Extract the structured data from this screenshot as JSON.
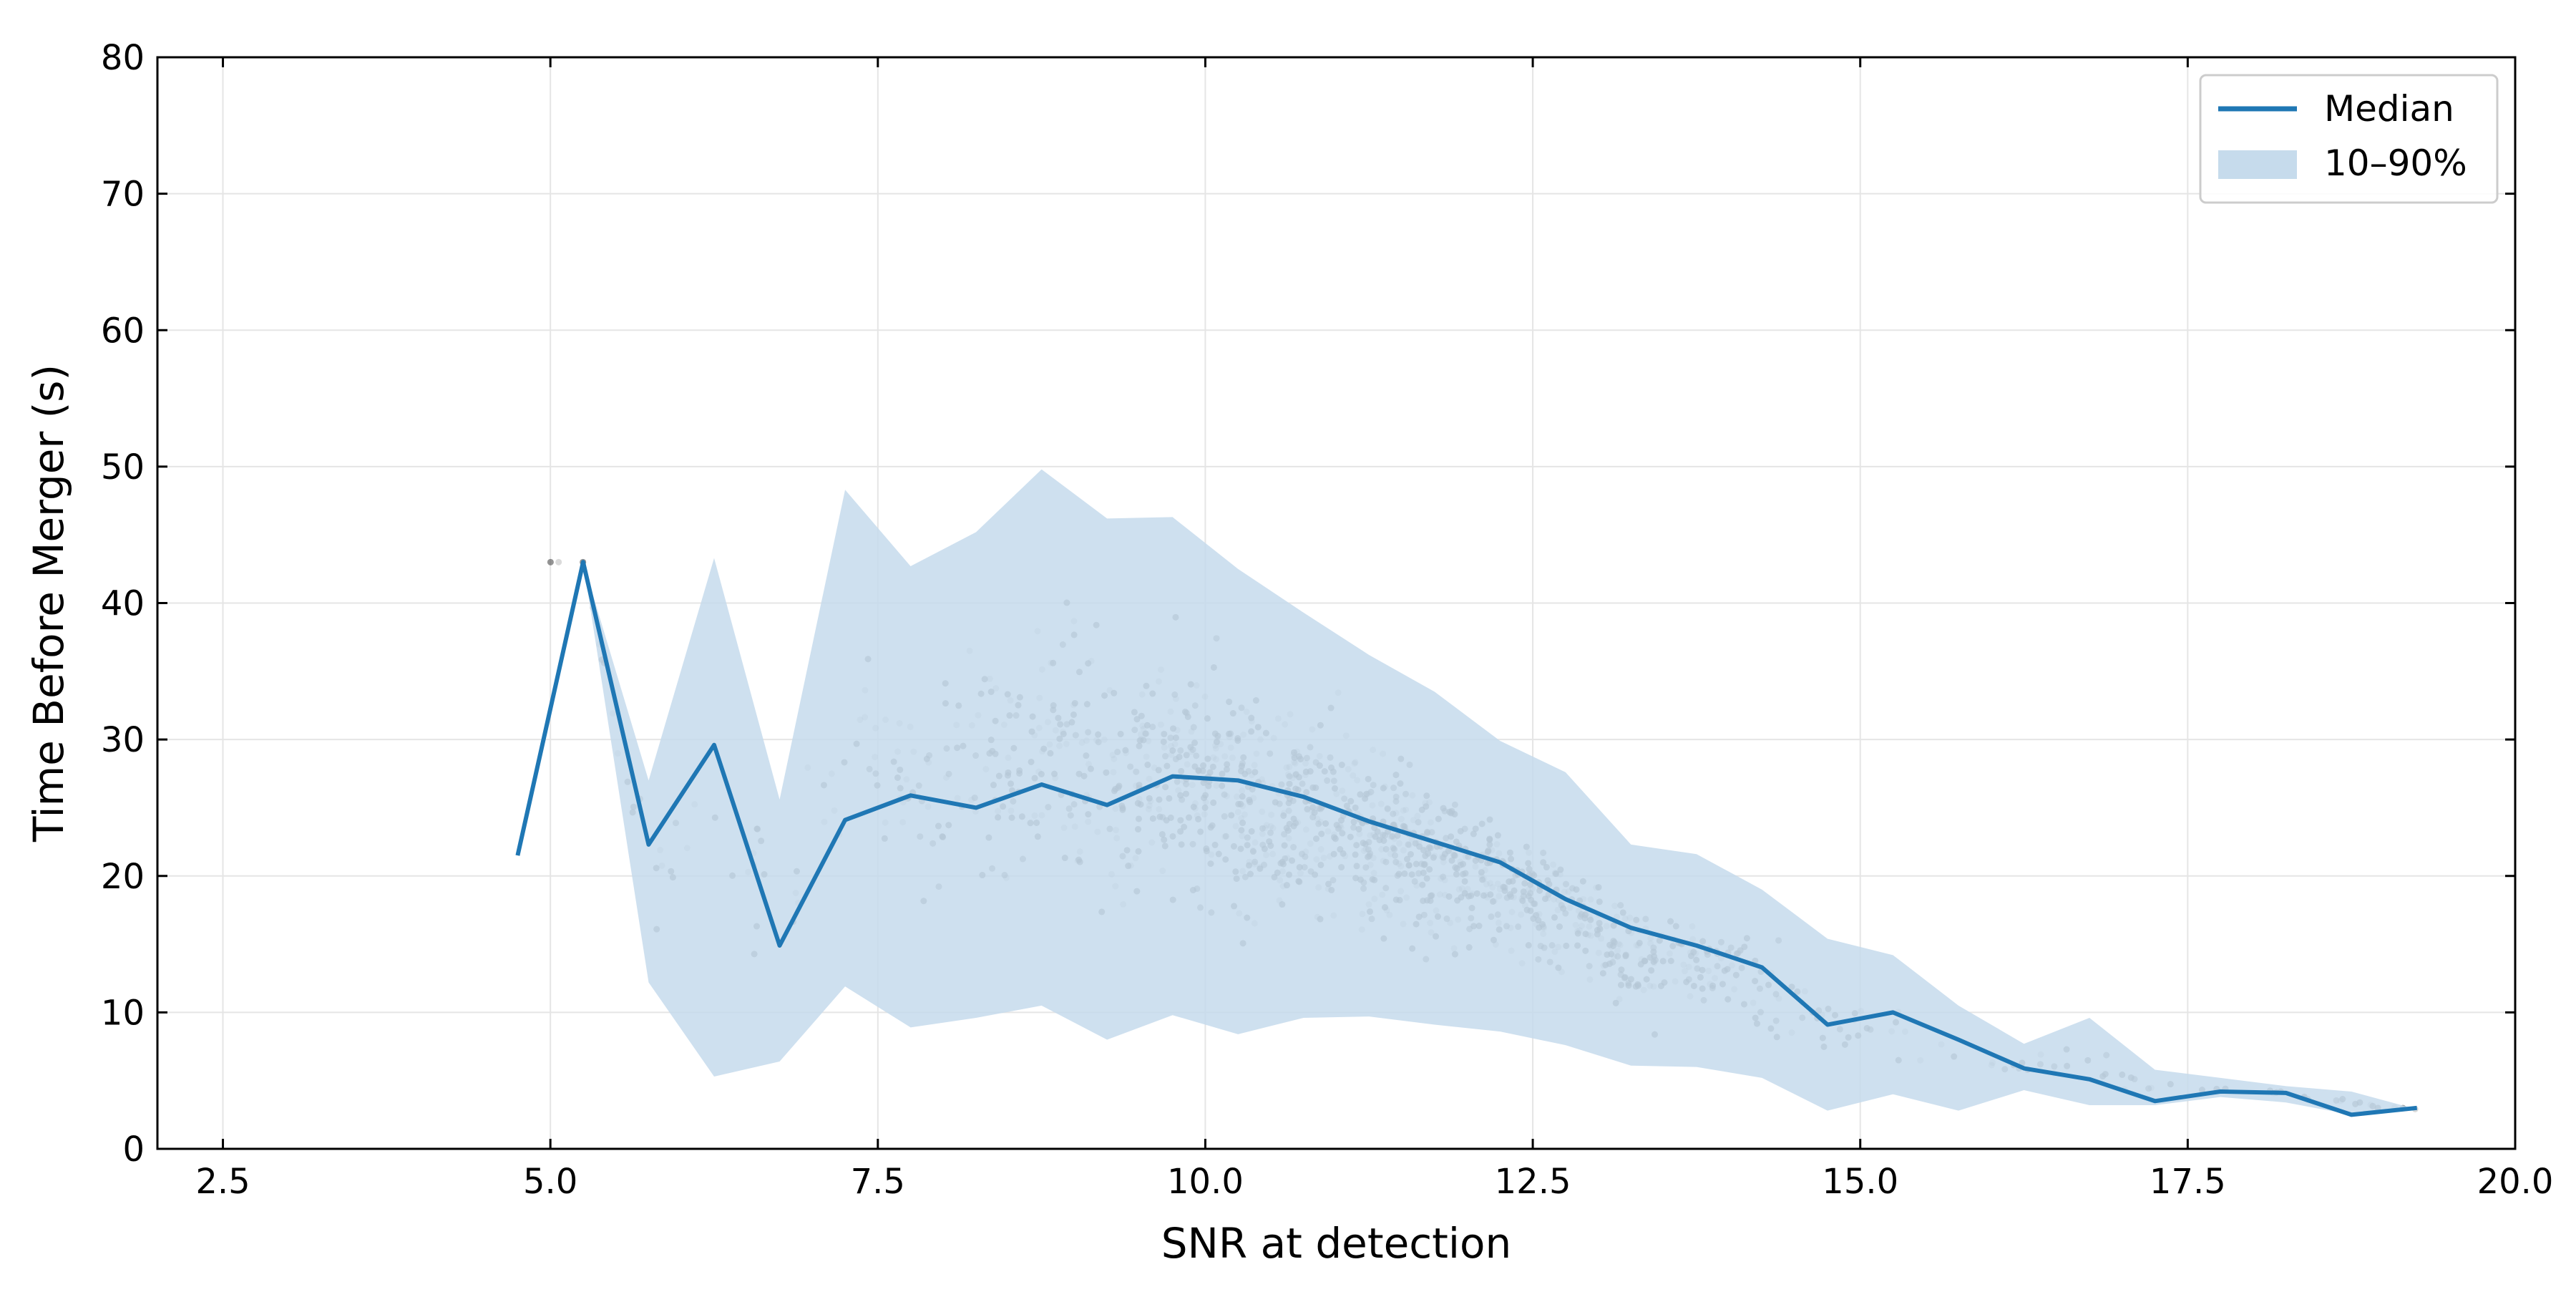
{
  "chart_data": {
    "type": "line",
    "title": "",
    "xlabel": "SNR at detection",
    "ylabel": "Time Before Merger (s)",
    "xlim": [
      2.0,
      20.0
    ],
    "ylim": [
      0,
      80
    ],
    "xticks": [
      2.5,
      5.0,
      7.5,
      10.0,
      12.5,
      15.0,
      17.5,
      20.0
    ],
    "xtick_labels": [
      "2.5",
      "5.0",
      "7.5",
      "10.0",
      "12.5",
      "15.0",
      "17.5",
      "20.0"
    ],
    "yticks": [
      0,
      10,
      20,
      30,
      40,
      50,
      60,
      70,
      80
    ],
    "ytick_labels": [
      "0",
      "10",
      "20",
      "30",
      "40",
      "50",
      "60",
      "70",
      "80"
    ],
    "grid": true,
    "legend_position": "top-right",
    "colors": {
      "median": "#1f77b4",
      "band": "#c6dbec",
      "scatter": "#555555"
    },
    "series": [
      {
        "name": "Median",
        "type": "line",
        "x": [
          4.75,
          5.25,
          5.75,
          6.25,
          6.75,
          7.25,
          7.75,
          8.25,
          8.75,
          9.25,
          9.75,
          10.25,
          10.75,
          11.25,
          11.75,
          12.25,
          12.75,
          13.25,
          13.75,
          14.25,
          14.75,
          15.25,
          15.75,
          16.25,
          16.75,
          17.25,
          17.75,
          18.25,
          18.75,
          19.25
        ],
        "y": [
          21.5,
          43.0,
          22.3,
          29.6,
          14.9,
          24.1,
          25.9,
          25.0,
          26.7,
          25.2,
          27.3,
          27.0,
          25.8,
          24.0,
          22.5,
          21.0,
          18.3,
          16.2,
          14.9,
          13.3,
          9.1,
          10.0,
          8.0,
          5.9,
          5.1,
          3.5,
          4.2,
          4.1,
          2.5,
          3.0
        ]
      },
      {
        "name": "10–90%",
        "type": "area",
        "x": [
          5.25,
          5.75,
          6.25,
          6.75,
          7.25,
          7.75,
          8.25,
          8.75,
          9.25,
          9.75,
          10.25,
          10.75,
          11.25,
          11.75,
          12.25,
          12.75,
          13.25,
          13.75,
          14.25,
          14.75,
          15.25,
          15.75,
          16.25,
          16.75,
          17.25,
          17.75,
          18.25,
          18.75,
          19.25
        ],
        "lower": [
          43.0,
          12.2,
          5.3,
          6.4,
          11.9,
          8.9,
          9.6,
          10.5,
          8.0,
          9.8,
          8.4,
          9.6,
          9.7,
          9.1,
          8.6,
          7.6,
          6.1,
          6.0,
          5.2,
          2.8,
          4.0,
          2.8,
          4.3,
          3.2,
          3.2,
          3.8,
          3.4,
          2.5,
          2.9
        ],
        "upper": [
          43.0,
          27.0,
          43.3,
          25.6,
          48.3,
          42.7,
          45.2,
          49.8,
          46.2,
          46.3,
          42.5,
          39.3,
          36.2,
          33.5,
          29.9,
          27.6,
          22.3,
          21.6,
          19.0,
          15.4,
          14.2,
          10.5,
          7.7,
          9.6,
          5.8,
          5.2,
          4.6,
          4.2,
          2.9
        ]
      }
    ],
    "scatter_note_free": true
  }
}
